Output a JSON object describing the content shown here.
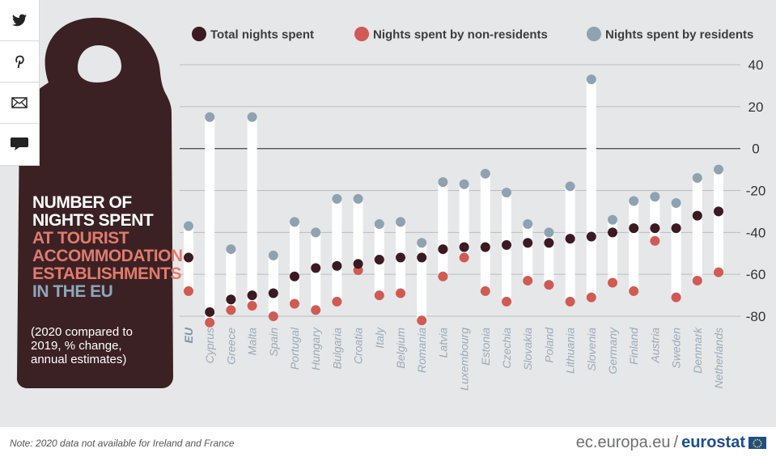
{
  "share": {
    "items": [
      {
        "name": "twitter-icon",
        "glyph": "twitter"
      },
      {
        "name": "pinterest-icon",
        "glyph": "pinterest"
      },
      {
        "name": "email-icon",
        "glyph": "email"
      },
      {
        "name": "comment-icon",
        "glyph": "comment"
      }
    ]
  },
  "hanger": {
    "title_line1": "NUMBER OF",
    "title_line2": "NIGHTS SPENT",
    "title_line3": "AT TOURIST",
    "title_line4": "ACCOMMODATION",
    "title_line5": "ESTABLISHMENTS",
    "title_line6": "IN THE EU",
    "note": "(2020 compared to 2019, % change, annual estimates)"
  },
  "footer": {
    "note": "Note: 2020 data not available for Ireland and France",
    "url": "ec.europa.eu",
    "slash": "/",
    "brand": "eurostat"
  },
  "colors": {
    "background": "#e6e7e8",
    "hanger": "#3b2123",
    "total": "#3b1a22",
    "non_residents": "#d05a54",
    "residents": "#8fa2b2",
    "label": "#9aaab8",
    "brand": "#1f4e8c"
  },
  "chart_data": {
    "type": "dot",
    "title": "NUMBER OF NIGHTS SPENT AT TOURIST ACCOMMODATION ESTABLISHMENTS IN THE EU",
    "subtitle": "(2020 compared to 2019, % change, annual estimates)",
    "ylim": [
      -80,
      40
    ],
    "yticks": [
      40,
      20,
      0,
      -20,
      -40,
      -60,
      -80
    ],
    "grid": true,
    "legend_position": "top",
    "categories": [
      "EU",
      "Cyprus",
      "Greece",
      "Malta",
      "Spain",
      "Portugal",
      "Hungary",
      "Bulgaria",
      "Croatia",
      "Italy",
      "Belgium",
      "Romania",
      "Latvia",
      "Luxembourg",
      "Estonia",
      "Czechia",
      "Slovakia",
      "Poland",
      "Lithuania",
      "Slovenia",
      "Germany",
      "Finland",
      "Austria",
      "Sweden",
      "Denmark",
      "Netherlands"
    ],
    "series": [
      {
        "name": "Total nights spent",
        "color": "#3b1a22",
        "values": [
          -52,
          -78,
          -72,
          -70,
          -69,
          -61,
          -57,
          -56,
          -55,
          -53,
          -52,
          -52,
          -48,
          -47,
          -47,
          -46,
          -45,
          -45,
          -43,
          -42,
          -40,
          -38,
          -38,
          -38,
          -32,
          -30
        ]
      },
      {
        "name": "Nights spent by non-residents",
        "color": "#d05a54",
        "values": [
          -68,
          -83,
          -77,
          -75,
          -80,
          -74,
          -77,
          -73,
          -58,
          -70,
          -69,
          -82,
          -61,
          -52,
          -68,
          -73,
          -63,
          -65,
          -73,
          -71,
          -64,
          -68,
          -44,
          -71,
          -63,
          -59
        ]
      },
      {
        "name": "Nights spent by residents",
        "color": "#8fa2b2",
        "values": [
          -37,
          15,
          -48,
          15,
          -51,
          -35,
          -40,
          -24,
          -24,
          -36,
          -35,
          -45,
          -16,
          -17,
          -12,
          -21,
          -36,
          -40,
          -18,
          33,
          -34,
          -25,
          -23,
          -26,
          -14,
          -10
        ]
      }
    ]
  }
}
